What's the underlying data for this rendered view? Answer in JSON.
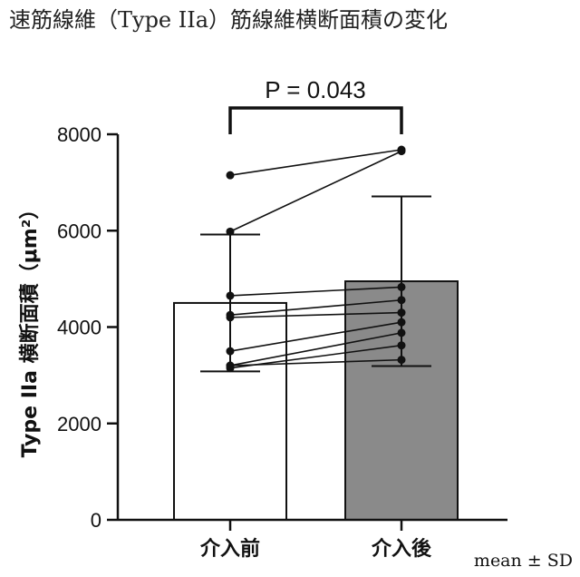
{
  "title": "速筋線維（Type IIa）筋線維横断面積の変化",
  "footnote": "mean ± SD",
  "significance": {
    "label": "P = 0.043"
  },
  "chart_data": {
    "type": "bar",
    "title": "速筋線維（Type IIa）筋線維横断面積の変化",
    "xlabel": "",
    "ylabel": "Type IIa 横断面積（μm²）",
    "ylim": [
      0,
      8000
    ],
    "yticks": [
      0,
      2000,
      4000,
      6000,
      8000
    ],
    "categories": [
      "介入前",
      "介入後"
    ],
    "means": [
      4500,
      4950
    ],
    "sd": [
      1420,
      1760
    ],
    "bar_colors": [
      "#ffffff",
      "#8a8a8a"
    ],
    "paired_points": [
      [
        7150,
        7680
      ],
      [
        5980,
        7650
      ],
      [
        4650,
        4830
      ],
      [
        4250,
        4560
      ],
      [
        4200,
        4300
      ],
      [
        3500,
        4100
      ],
      [
        3200,
        3880
      ],
      [
        3150,
        3620
      ],
      [
        3200,
        3320
      ]
    ],
    "grid": false,
    "legend": "none"
  }
}
